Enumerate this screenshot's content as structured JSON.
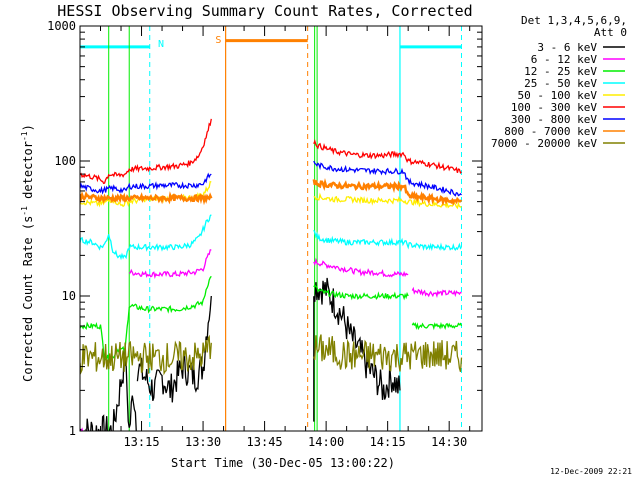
{
  "chart_data": {
    "type": "line",
    "title": "HESSI Observing Summary Count Rates, Corrected",
    "xlabel": "Start Time (30-Dec-05 13:00:22)",
    "ylabel_main": "Corrected Count Rate (s",
    "ylabel_sup1": "-1",
    "ylabel_mid": " detector",
    "ylabel_sup2": "-1",
    "ylabel_end": ")",
    "y_scale": "log",
    "ylim": [
      1,
      1000
    ],
    "xlim_minutes": [
      0,
      98
    ],
    "x_ticks": [
      {
        "label": "13:15",
        "value": 15
      },
      {
        "label": "13:30",
        "value": 30
      },
      {
        "label": "13:45",
        "value": 45
      },
      {
        "label": "14:00",
        "value": 60
      },
      {
        "label": "14:15",
        "value": 75
      },
      {
        "label": "14:30",
        "value": 90
      }
    ],
    "y_ticks": [
      {
        "label": "1",
        "value": 1
      },
      {
        "label": "10",
        "value": 10
      },
      {
        "label": "100",
        "value": 100
      },
      {
        "label": "1000",
        "value": 1000
      }
    ],
    "legend_header": [
      "Det 1,3,4,5,6,9,",
      "Att 0"
    ],
    "series": [
      {
        "name": "3 - 6 keV",
        "color": "#000000",
        "segments": [
          [
            [
              0,
              1
            ],
            [
              4,
              1
            ],
            [
              7,
              1
            ],
            [
              8,
              1
            ],
            [
              11,
              3.5
            ],
            [
              12,
              1
            ],
            [
              13,
              2
            ],
            [
              14,
              1
            ]
          ],
          [
            [
              14,
              3
            ],
            [
              18,
              2
            ],
            [
              20,
              2.5
            ],
            [
              22,
              2
            ],
            [
              25,
              3
            ],
            [
              28,
              2.5
            ],
            [
              30,
              3
            ],
            [
              31,
              6
            ],
            [
              32,
              10
            ]
          ],
          [
            [
              57,
              1
            ],
            [
              57,
              12
            ],
            [
              60,
              11
            ],
            [
              62,
              9
            ],
            [
              64,
              7
            ],
            [
              66,
              5
            ],
            [
              68,
              4
            ],
            [
              70,
              3
            ],
            [
              72,
              2.5
            ],
            [
              74,
              2
            ],
            [
              76,
              2.5
            ],
            [
              78,
              2
            ]
          ]
        ]
      },
      {
        "name": "6 - 12 keV",
        "color": "#ff00ff",
        "segments": [
          [
            [
              0,
              1
            ],
            [
              1,
              1
            ]
          ],
          [
            [
              12,
              15
            ],
            [
              16,
              14.5
            ],
            [
              20,
              14.5
            ],
            [
              24,
              14.5
            ],
            [
              28,
              15
            ],
            [
              30,
              16
            ],
            [
              31,
              19
            ],
            [
              32,
              22
            ]
          ],
          [
            [
              57,
              18
            ],
            [
              60,
              17
            ],
            [
              64,
              16
            ],
            [
              68,
              15
            ],
            [
              72,
              15
            ],
            [
              75,
              14.5
            ],
            [
              78,
              14.5
            ],
            [
              80,
              14.5
            ]
          ],
          [
            [
              81,
              11
            ],
            [
              85,
              10.5
            ],
            [
              90,
              10.5
            ],
            [
              93,
              10.5
            ]
          ]
        ]
      },
      {
        "name": "12 - 25 keV",
        "color": "#00ee00",
        "segments": [
          [
            [
              0,
              6
            ],
            [
              5,
              6
            ],
            [
              6,
              3.5
            ],
            [
              8,
              3.5
            ],
            [
              9,
              4
            ],
            [
              11,
              4
            ],
            [
              12,
              8.5
            ],
            [
              16,
              8
            ],
            [
              20,
              8
            ],
            [
              24,
              8
            ],
            [
              28,
              8.5
            ],
            [
              30,
              9
            ],
            [
              31,
              12
            ],
            [
              32,
              14
            ]
          ],
          [
            [
              57,
              12
            ],
            [
              58,
              11
            ],
            [
              60,
              10.5
            ],
            [
              65,
              10
            ],
            [
              70,
              10
            ],
            [
              75,
              10
            ],
            [
              80,
              10
            ]
          ],
          [
            [
              81,
              6
            ],
            [
              85,
              6
            ],
            [
              90,
              6
            ],
            [
              93,
              6
            ]
          ]
        ]
      },
      {
        "name": "25 - 50 keV",
        "color": "#00ffff",
        "segments": [
          [
            [
              0,
              26
            ],
            [
              3,
              25
            ],
            [
              5,
              23
            ],
            [
              6,
              24
            ],
            [
              7,
              29
            ],
            [
              8,
              22
            ],
            [
              9,
              20
            ],
            [
              11,
              19
            ],
            [
              12,
              23
            ],
            [
              16,
              23
            ],
            [
              20,
              23
            ],
            [
              24,
              23
            ],
            [
              27,
              24
            ],
            [
              29,
              27
            ],
            [
              30,
              31
            ],
            [
              31,
              36
            ],
            [
              32,
              40
            ]
          ],
          [
            [
              57,
              30
            ],
            [
              58,
              27
            ],
            [
              60,
              26
            ],
            [
              65,
              25
            ],
            [
              70,
              25
            ],
            [
              75,
              25
            ],
            [
              79,
              25
            ],
            [
              80,
              24
            ],
            [
              85,
              23
            ],
            [
              90,
              23
            ],
            [
              93,
              23
            ]
          ]
        ]
      },
      {
        "name": "50 - 100 keV",
        "color": "#ffee00",
        "segments": [
          [
            [
              0,
              50
            ],
            [
              5,
              48
            ],
            [
              8,
              52
            ],
            [
              10,
              47
            ],
            [
              12,
              50
            ],
            [
              16,
              52
            ],
            [
              20,
              53
            ],
            [
              24,
              53
            ],
            [
              28,
              54
            ],
            [
              30,
              57
            ],
            [
              31,
              62
            ],
            [
              32,
              70
            ]
          ],
          [
            [
              57,
              55
            ],
            [
              58,
              54
            ],
            [
              62,
              52
            ],
            [
              66,
              52
            ],
            [
              70,
              51
            ],
            [
              75,
              51
            ],
            [
              79,
              51
            ],
            [
              80,
              50
            ],
            [
              85,
              48
            ],
            [
              90,
              47
            ],
            [
              93,
              46
            ]
          ]
        ]
      },
      {
        "name": "100 - 300 keV",
        "color": "#ff0000",
        "segments": [
          [
            [
              0,
              80
            ],
            [
              4,
              75
            ],
            [
              6,
              70
            ],
            [
              7,
              80
            ],
            [
              9,
              78
            ],
            [
              11,
              80
            ],
            [
              12,
              87
            ],
            [
              16,
              88
            ],
            [
              20,
              90
            ],
            [
              24,
              92
            ],
            [
              27,
              97
            ],
            [
              29,
              110
            ],
            [
              30,
              130
            ],
            [
              31,
              160
            ],
            [
              32,
              205
            ]
          ],
          [
            [
              57,
              140
            ],
            [
              58,
              130
            ],
            [
              62,
              118
            ],
            [
              66,
              112
            ],
            [
              70,
              110
            ],
            [
              74,
              110
            ],
            [
              76,
              112
            ],
            [
              79,
              113
            ],
            [
              80,
              100
            ],
            [
              85,
              95
            ],
            [
              90,
              88
            ],
            [
              93,
              83
            ]
          ]
        ]
      },
      {
        "name": "300 - 800 keV",
        "color": "#0000ff",
        "segments": [
          [
            [
              0,
              65
            ],
            [
              5,
              60
            ],
            [
              8,
              63
            ],
            [
              11,
              60
            ],
            [
              12,
              65
            ],
            [
              16,
              65
            ],
            [
              20,
              66
            ],
            [
              24,
              66
            ],
            [
              28,
              66
            ],
            [
              30,
              68
            ],
            [
              31,
              75
            ],
            [
              32,
              80
            ]
          ],
          [
            [
              57,
              98
            ],
            [
              58,
              93
            ],
            [
              62,
              88
            ],
            [
              66,
              86
            ],
            [
              70,
              85
            ],
            [
              75,
              84
            ],
            [
              79,
              84
            ],
            [
              80,
              70
            ],
            [
              85,
              65
            ],
            [
              90,
              60
            ],
            [
              93,
              56
            ]
          ]
        ]
      },
      {
        "name": "800 - 7000 keV",
        "color": "#ff8000",
        "segments": [
          [
            [
              0,
              55
            ],
            [
              5,
              53
            ],
            [
              10,
              53
            ],
            [
              12,
              53
            ],
            [
              16,
              53
            ],
            [
              20,
              53
            ],
            [
              24,
              53
            ],
            [
              28,
              53
            ],
            [
              32,
              53
            ]
          ],
          [
            [
              57,
              70
            ],
            [
              58,
              68
            ],
            [
              62,
              66
            ],
            [
              66,
              65
            ],
            [
              70,
              65
            ],
            [
              75,
              65
            ],
            [
              79,
              65
            ],
            [
              80,
              55
            ],
            [
              85,
              53
            ],
            [
              90,
              51
            ],
            [
              93,
              50
            ]
          ]
        ]
      },
      {
        "name": "7000 - 20000 keV",
        "color": "#808000",
        "segments": [
          [
            [
              0,
              3.5
            ],
            [
              4,
              3.5
            ],
            [
              8,
              3.5
            ],
            [
              12,
              3.5
            ],
            [
              16,
              3.5
            ],
            [
              20,
              3.5
            ],
            [
              24,
              3.5
            ],
            [
              28,
              3.5
            ],
            [
              30,
              3.6
            ],
            [
              32,
              4.5
            ]
          ],
          [
            [
              57,
              4
            ],
            [
              60,
              4
            ],
            [
              65,
              3.6
            ],
            [
              70,
              3.6
            ],
            [
              75,
              3.6
            ],
            [
              80,
              3.6
            ],
            [
              85,
              3.7
            ],
            [
              90,
              3.6
            ],
            [
              93,
              3.5
            ]
          ]
        ]
      }
    ],
    "state_markers": [
      {
        "letter": "N",
        "color": "#00ffff",
        "bars": [
          [
            0,
            17
          ],
          [
            78,
            93
          ]
        ],
        "bar_level": 700,
        "label_x": 19,
        "label_level": 750,
        "solid_lines": [
          78
        ],
        "dashed_lines": [
          17,
          93
        ]
      },
      {
        "letter": "S",
        "color": "#ff8000",
        "bars": [
          [
            35.5,
            55.5
          ]
        ],
        "bar_level": 780,
        "label_x": 33,
        "label_level": 800,
        "solid_lines": [
          35.5
        ],
        "dashed_lines": [
          55.5
        ]
      }
    ],
    "green_vlines": [
      [
        7,
        12
      ],
      [
        57.2,
        57.8
      ]
    ],
    "footer_date": "12-Dec-2009 22:21",
    "grid": false
  }
}
